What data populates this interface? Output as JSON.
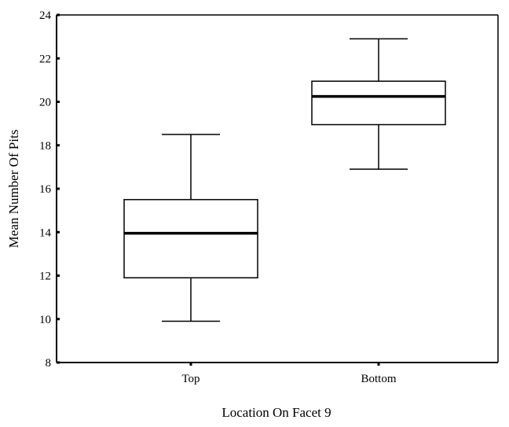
{
  "chart_data": {
    "type": "box",
    "xlabel": "Location On Facet 9",
    "ylabel": "Mean Number Of Pits",
    "ylim": [
      8,
      24
    ],
    "yticks": [
      8,
      10,
      12,
      14,
      16,
      18,
      20,
      22,
      24
    ],
    "grid": false,
    "categories": [
      "Top",
      "Bottom"
    ],
    "boxes": [
      {
        "category": "Top",
        "min": 9.9,
        "q1": 11.9,
        "median": 13.95,
        "q3": 15.5,
        "max": 18.5
      },
      {
        "category": "Bottom",
        "min": 16.9,
        "q1": 18.95,
        "median": 20.25,
        "q3": 20.95,
        "max": 22.9
      }
    ]
  }
}
